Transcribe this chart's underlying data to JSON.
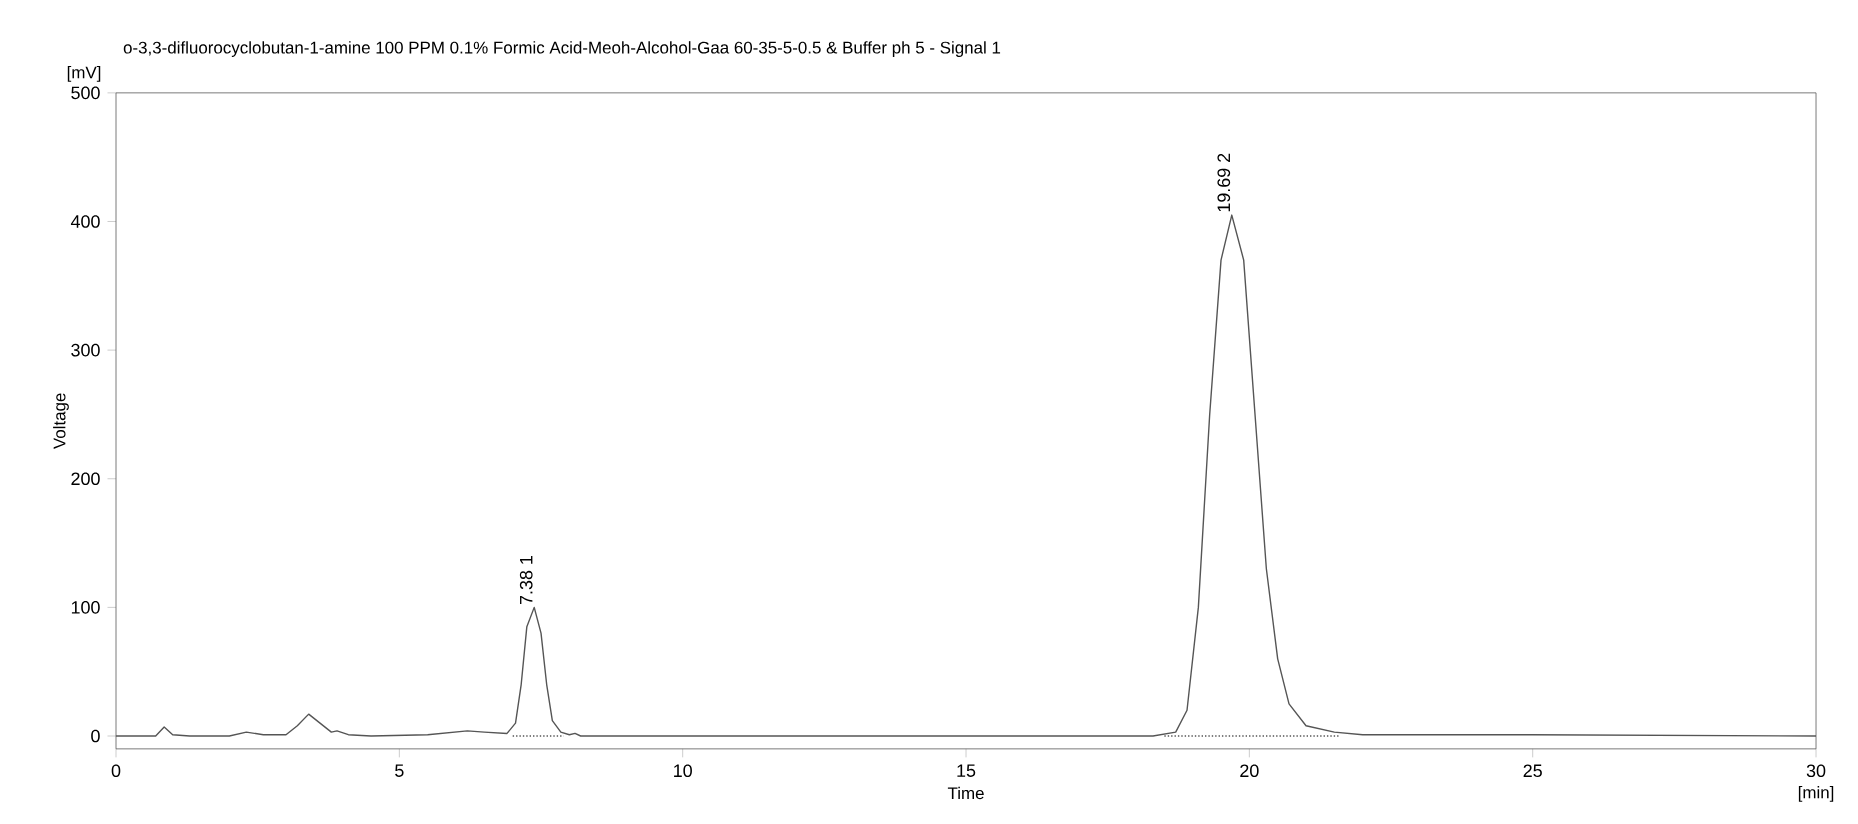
{
  "chart_data": {
    "type": "line",
    "title": "o-3,3-difluorocyclobutan-1-amine 100 PPM  0.1%  Formic Acid-Meoh-Alcohol-Gaa 60-35-5-0.5 & Buffer ph 5 - Signal 1",
    "xlabel": "Time",
    "ylabel": "Voltage",
    "annotations": [
      "[mV]",
      "[min]",
      {
        "text": "7.38  1",
        "x": 7.38,
        "y": 100
      },
      {
        "text": "19.69  2",
        "x": 19.69,
        "y": 405
      }
    ],
    "xlim": [
      0,
      30
    ],
    "ylim": [
      -10,
      500
    ],
    "xticks": [
      0,
      5,
      10,
      15,
      20,
      25,
      30
    ],
    "yticks": [
      0,
      100,
      200,
      300,
      400,
      500
    ],
    "series": [
      {
        "color": "#555555",
        "x": [
          0,
          0.7,
          0.85,
          1.0,
          1.3,
          2.0,
          2.3,
          2.6,
          3.0,
          3.2,
          3.4,
          3.6,
          3.8,
          3.9,
          4.1,
          4.5,
          5.5,
          6.2,
          6.5,
          6.9,
          7.05,
          7.15,
          7.25,
          7.38,
          7.5,
          7.6,
          7.7,
          7.85,
          8.0,
          8.1,
          8.2,
          8.5,
          12,
          18.3,
          18.7,
          18.9,
          19.1,
          19.3,
          19.5,
          19.69,
          19.9,
          20.1,
          20.3,
          20.5,
          20.7,
          21.0,
          21.5,
          22,
          25,
          30
        ],
        "values": [
          0,
          0,
          7,
          1,
          0,
          0,
          3,
          1,
          1,
          8,
          17,
          10,
          3,
          4,
          1,
          0,
          1,
          4,
          3,
          2,
          10,
          40,
          85,
          100,
          80,
          40,
          12,
          3,
          1,
          2,
          0,
          0,
          0,
          0,
          3,
          20,
          100,
          250,
          370,
          405,
          370,
          250,
          130,
          60,
          25,
          8,
          3,
          1,
          1,
          0
        ]
      },
      {
        "color": "#555555",
        "line_style": "dotted",
        "x": [
          7.0,
          7.9
        ],
        "values": [
          0,
          0
        ]
      },
      {
        "color": "#555555",
        "line_style": "dotted",
        "x": [
          18.5,
          21.6
        ],
        "values": [
          0,
          0
        ]
      }
    ]
  }
}
